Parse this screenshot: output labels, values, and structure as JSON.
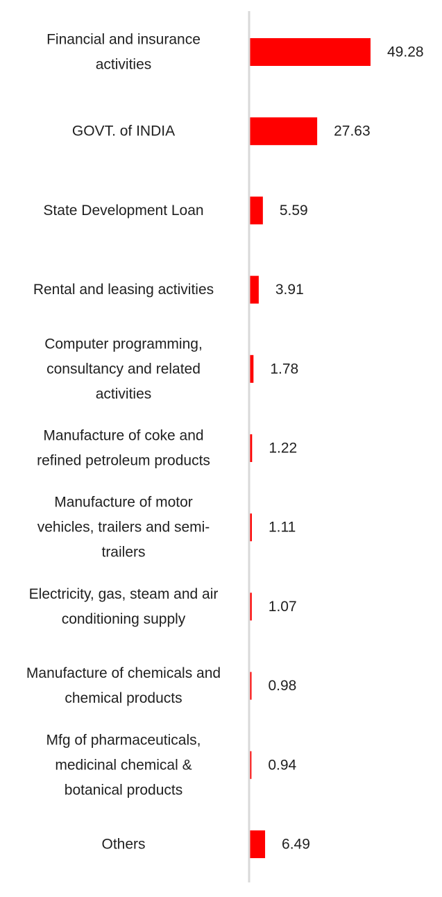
{
  "chart_data": {
    "type": "bar",
    "orientation": "horizontal",
    "title": "",
    "xlabel": "",
    "ylabel": "",
    "categories": [
      [
        "Financial and insurance",
        "activities"
      ],
      [
        "GOVT. of INDIA"
      ],
      [
        "State Development Loan"
      ],
      [
        "Rental and leasing activities"
      ],
      [
        "Computer programming,",
        "consultancy and related",
        "activities"
      ],
      [
        "Manufacture of coke and",
        "refined petroleum products"
      ],
      [
        "Manufacture of motor",
        "vehicles, trailers and semi-",
        "trailers"
      ],
      [
        "Electricity, gas, steam and air",
        "conditioning supply"
      ],
      [
        "Manufacture of chemicals and",
        "chemical products"
      ],
      [
        "Mfg of pharmaceuticals,",
        "medicinal chemical &",
        "botanical products"
      ],
      [
        "Others"
      ]
    ],
    "values": [
      49.28,
      27.63,
      5.59,
      3.91,
      1.78,
      1.22,
      1.11,
      1.07,
      0.98,
      0.94,
      6.49
    ],
    "value_labels": [
      "49.28",
      "27.63",
      "5.59",
      "3.91",
      "1.78",
      "1.22",
      "1.11",
      "1.07",
      "0.98",
      "0.94",
      "6.49"
    ],
    "xlim": [
      0,
      50
    ],
    "bar_color": "#ff0000",
    "axis_color": "#d9d9d9",
    "grid": false,
    "legend": "none"
  }
}
